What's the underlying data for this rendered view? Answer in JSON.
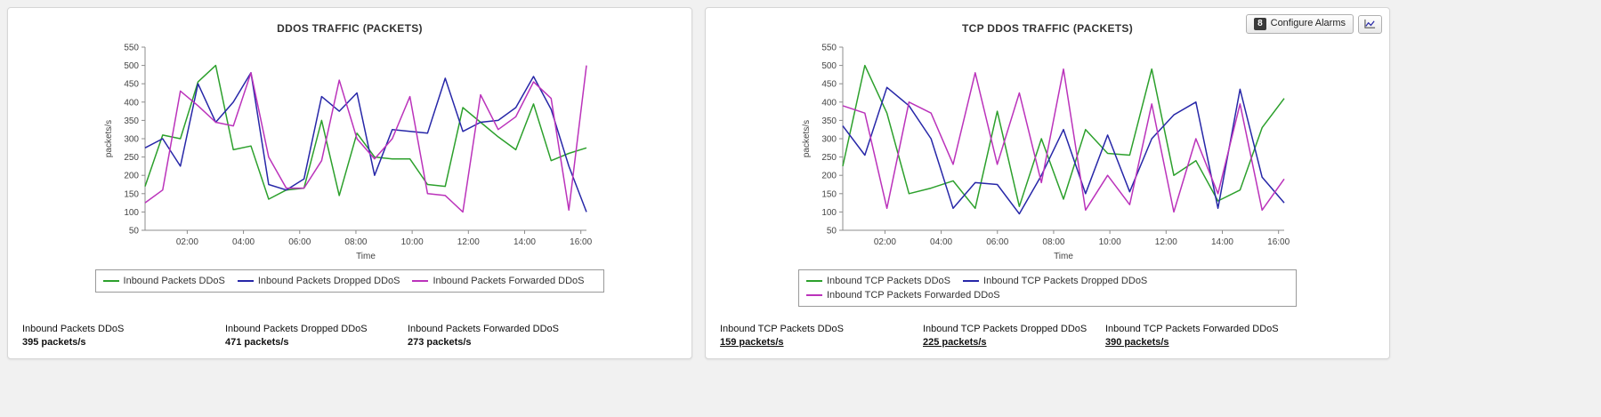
{
  "page": {
    "background": "#f1f1f1",
    "panel_background": "#ffffff"
  },
  "toolbar": {
    "alarm_badge": "8",
    "configure_alarms_label": "Configure Alarms",
    "chart_button_icon": "line-chart-icon"
  },
  "colors": {
    "series_green": "#2ca02c",
    "series_blue": "#2727a8",
    "series_magenta": "#bb33bb",
    "axis": "#8c8c8c",
    "tick_text": "#444444",
    "title_text": "#333333"
  },
  "panels": [
    {
      "stats": [
        {
          "label": "Inbound Packets DDoS",
          "value": "395 packets/s"
        },
        {
          "label": "Inbound Packets Dropped DDoS",
          "value": "471 packets/s"
        },
        {
          "label": "Inbound Packets Forwarded DDoS",
          "value": "273 packets/s"
        }
      ]
    },
    {
      "stats": [
        {
          "label": "Inbound TCP Packets DDoS",
          "value": "159 packets/s"
        },
        {
          "label": "Inbound TCP Packets Dropped DDoS",
          "value": "225 packets/s"
        },
        {
          "label": "Inbound TCP Packets Forwarded DDoS",
          "value": "390 packets/s"
        }
      ]
    }
  ],
  "chart_data": [
    {
      "type": "line",
      "title": "DDOS TRAFFIC (PACKETS)",
      "xlabel": "Time",
      "ylabel": "packets/s",
      "ylim": [
        50,
        550
      ],
      "y_ticks": [
        50,
        100,
        150,
        200,
        250,
        300,
        350,
        400,
        450,
        500,
        550
      ],
      "x_range_hours": [
        0.5,
        16.2
      ],
      "x_tick_hours": [
        2,
        4,
        6,
        8,
        10,
        12,
        14,
        16
      ],
      "x_tick_labels": [
        "02:00",
        "04:00",
        "06:00",
        "08:00",
        "10:00",
        "12:00",
        "14:00",
        "16:00"
      ],
      "grid": false,
      "legend_position": "bottom",
      "series": [
        {
          "name": "Inbound Packets DDoS",
          "color_key": "series_green",
          "values": [
            170,
            310,
            300,
            455,
            500,
            270,
            280,
            135,
            160,
            165,
            350,
            145,
            315,
            250,
            245,
            245,
            175,
            170,
            385,
            345,
            305,
            270,
            395,
            240,
            260,
            275
          ]
        },
        {
          "name": "Inbound Packets Dropped DDoS",
          "color_key": "series_blue",
          "values": [
            275,
            300,
            225,
            450,
            345,
            400,
            480,
            175,
            160,
            190,
            415,
            375,
            425,
            200,
            325,
            320,
            315,
            465,
            320,
            345,
            350,
            385,
            470,
            380,
            225,
            100
          ]
        },
        {
          "name": "Inbound Packets Forwarded DDoS",
          "color_key": "series_magenta",
          "values": [
            125,
            160,
            430,
            390,
            345,
            335,
            480,
            250,
            165,
            165,
            240,
            460,
            300,
            245,
            300,
            415,
            150,
            145,
            100,
            420,
            325,
            360,
            455,
            410,
            105,
            500
          ]
        }
      ]
    },
    {
      "type": "line",
      "title": "TCP DDOS TRAFFIC (PACKETS)",
      "xlabel": "Time",
      "ylabel": "packets/s",
      "ylim": [
        50,
        550
      ],
      "y_ticks": [
        50,
        100,
        150,
        200,
        250,
        300,
        350,
        400,
        450,
        500,
        550
      ],
      "x_range_hours": [
        0.5,
        16.2
      ],
      "x_tick_hours": [
        2,
        4,
        6,
        8,
        10,
        12,
        14,
        16
      ],
      "x_tick_labels": [
        "02:00",
        "04:00",
        "06:00",
        "08:00",
        "10:00",
        "12:00",
        "14:00",
        "16:00"
      ],
      "grid": false,
      "legend_position": "bottom",
      "series": [
        {
          "name": "Inbound TCP Packets DDoS",
          "color_key": "series_green",
          "values": [
            225,
            500,
            370,
            150,
            165,
            185,
            110,
            375,
            115,
            300,
            135,
            325,
            260,
            255,
            490,
            200,
            240,
            130,
            160,
            330,
            410
          ]
        },
        {
          "name": "Inbound TCP Packets Dropped DDoS",
          "color_key": "series_blue",
          "values": [
            335,
            255,
            440,
            390,
            300,
            110,
            180,
            175,
            95,
            200,
            325,
            150,
            310,
            155,
            300,
            365,
            400,
            110,
            435,
            195,
            125
          ]
        },
        {
          "name": "Inbound TCP Packets Forwarded DDoS",
          "color_key": "series_magenta",
          "values": [
            390,
            370,
            110,
            400,
            370,
            230,
            480,
            230,
            425,
            180,
            490,
            105,
            200,
            120,
            395,
            100,
            300,
            150,
            395,
            105,
            190
          ]
        }
      ]
    }
  ]
}
